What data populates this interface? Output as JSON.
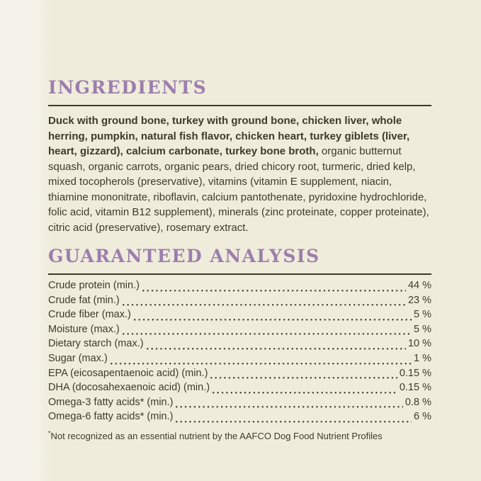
{
  "theme": {
    "bg": "#efecdb",
    "bg_light": "#f5f3e9",
    "text": "#3e3b2c",
    "accent": "#9c7ead",
    "rule": "#3b392b"
  },
  "ingredients": {
    "title": "INGREDIENTS",
    "bold_text": "Duck with ground bone, turkey with ground bone, chicken liver, whole herring, pumpkin, natural fish flavor, chicken heart, turkey giblets (liver, heart, gizzard), calcium carbonate, turkey bone broth,",
    "regular_text": "organic butternut squash, organic carrots, organic pears, dried chicory root, turmeric, dried kelp, mixed tocopherols (preservative), vitamins (vitamin E supplement, niacin, thiamine mononitrate, riboflavin, calcium pantothenate, pyridoxine hydrochloride, folic acid, vitamin B12 supplement), minerals (zinc proteinate, copper proteinate), citric acid (preservative), rosemary extract."
  },
  "guaranteed_analysis": {
    "title": "GUARANTEED ANALYSIS",
    "rows": [
      {
        "label": "Crude protein (min.)",
        "value": "44 %"
      },
      {
        "label": "Crude fat (min.)",
        "value": "23 %"
      },
      {
        "label": "Crude fiber (max.)",
        "value": "5 %"
      },
      {
        "label": "Moisture (max.)",
        "value": "5 %"
      },
      {
        "label": "Dietary starch (max.)",
        "value": "10 %"
      },
      {
        "label": "Sugar (max.)",
        "value": "1 %"
      },
      {
        "label": "EPA (eicosapentaenoic acid) (min.)",
        "value": "0.15 %"
      },
      {
        "label": "DHA (docosahexaenoic acid) (min.)",
        "value": "0.15 %"
      },
      {
        "label": "Omega-3 fatty acids* (min.)",
        "value": "0.8 %"
      },
      {
        "label": "Omega-6 fatty acids* (min.)",
        "value": "6 %"
      }
    ],
    "footnote_marker": "*",
    "footnote_text": "Not recognized as an essential nutrient by the AAFCO Dog Food Nutrient Profiles"
  }
}
